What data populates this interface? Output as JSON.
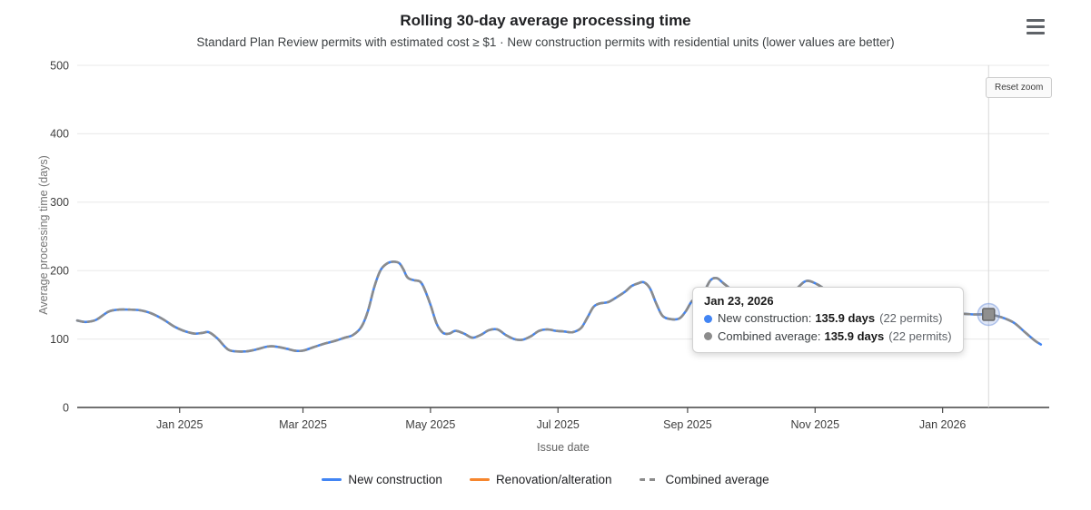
{
  "header": {
    "title": "Rolling 30-day average processing time",
    "subtitle": "Standard Plan Review permits with estimated cost ≥ $1 · New construction permits with residential units (lower values are better)"
  },
  "controls": {
    "reset_zoom_label": "Reset zoom"
  },
  "tooltip": {
    "title": "Jan 23, 2026",
    "rows": [
      {
        "label": "New construction:",
        "value": "135.9 days",
        "extra": "(22 permits)",
        "dot_color": "#4285f4"
      },
      {
        "label": "Combined average:",
        "value": "135.9 days",
        "extra": "(22 permits)",
        "dot_color": "#8c8c8c"
      }
    ]
  },
  "legend": [
    {
      "label": "New construction",
      "color": "#4285f4",
      "style": "solid"
    },
    {
      "label": "Renovation/alteration",
      "color": "#f6862e",
      "style": "solid"
    },
    {
      "label": "Combined average",
      "color": "#8c8c8c",
      "style": "dashed"
    }
  ],
  "colors": {
    "accent_blue": "#4285f4",
    "orange": "#f6862e",
    "gray_series": "#8c8c8c",
    "grid": "#e8e8e8",
    "axis": "#424242",
    "crosshair": "#d8d8d8"
  },
  "chart_data": {
    "type": "line",
    "title": "Rolling 30-day average processing time",
    "subtitle": "Standard Plan Review permits with estimated cost ≥ $1 · New construction permits with residential units (lower values are better)",
    "xlabel": "Issue date",
    "ylabel": "Average processing time (days)",
    "ylim": [
      0,
      500
    ],
    "y_ticks": [
      0,
      100,
      200,
      300,
      400,
      500
    ],
    "x_range": [
      "2024-11-13",
      "2026-02-21"
    ],
    "x_ticks": [
      {
        "label": "Jan 2025",
        "date": "2025-01-01"
      },
      {
        "label": "Mar 2025",
        "date": "2025-03-01"
      },
      {
        "label": "May 2025",
        "date": "2025-05-01"
      },
      {
        "label": "Jul 2025",
        "date": "2025-07-01"
      },
      {
        "label": "Sep 2025",
        "date": "2025-09-01"
      },
      {
        "label": "Nov 2025",
        "date": "2025-11-01"
      },
      {
        "label": "Jan 2026",
        "date": "2026-01-01"
      }
    ],
    "grid": true,
    "legend_position": "bottom",
    "hover": {
      "date": "2026-01-23",
      "new_construction": 135.9,
      "combined_average": 135.9,
      "permits": 22,
      "crosshair": true
    },
    "series": [
      {
        "name": "New construction",
        "color": "#4285f4",
        "style": "solid",
        "points": [
          [
            "2024-11-13",
            127
          ],
          [
            "2024-11-17",
            125
          ],
          [
            "2024-11-22",
            128
          ],
          [
            "2024-11-28",
            140
          ],
          [
            "2024-12-03",
            143
          ],
          [
            "2024-12-08",
            143
          ],
          [
            "2024-12-13",
            142
          ],
          [
            "2024-12-18",
            138
          ],
          [
            "2024-12-24",
            129
          ],
          [
            "2024-12-29",
            119
          ],
          [
            "2025-01-03",
            112
          ],
          [
            "2025-01-08",
            108
          ],
          [
            "2025-01-12",
            109
          ],
          [
            "2025-01-15",
            110
          ],
          [
            "2025-01-19",
            101
          ],
          [
            "2025-01-24",
            85
          ],
          [
            "2025-01-28",
            82
          ],
          [
            "2025-02-02",
            82
          ],
          [
            "2025-02-07",
            85
          ],
          [
            "2025-02-12",
            89
          ],
          [
            "2025-02-16",
            89
          ],
          [
            "2025-02-21",
            86
          ],
          [
            "2025-02-25",
            83
          ],
          [
            "2025-03-01",
            83
          ],
          [
            "2025-03-06",
            88
          ],
          [
            "2025-03-11",
            93
          ],
          [
            "2025-03-16",
            97
          ],
          [
            "2025-03-21",
            102
          ],
          [
            "2025-03-25",
            106
          ],
          [
            "2025-03-29",
            118
          ],
          [
            "2025-04-01",
            140
          ],
          [
            "2025-04-04",
            175
          ],
          [
            "2025-04-07",
            200
          ],
          [
            "2025-04-10",
            210
          ],
          [
            "2025-04-13",
            213
          ],
          [
            "2025-04-16",
            211
          ],
          [
            "2025-04-18",
            202
          ],
          [
            "2025-04-20",
            190
          ],
          [
            "2025-04-23",
            186
          ],
          [
            "2025-04-26",
            184
          ],
          [
            "2025-04-28",
            174
          ],
          [
            "2025-05-01",
            150
          ],
          [
            "2025-05-04",
            122
          ],
          [
            "2025-05-07",
            109
          ],
          [
            "2025-05-10",
            108
          ],
          [
            "2025-05-13",
            112
          ],
          [
            "2025-05-17",
            108
          ],
          [
            "2025-05-21",
            102
          ],
          [
            "2025-05-25",
            106
          ],
          [
            "2025-05-29",
            113
          ],
          [
            "2025-06-02",
            114
          ],
          [
            "2025-06-06",
            106
          ],
          [
            "2025-06-10",
            100
          ],
          [
            "2025-06-14",
            99
          ],
          [
            "2025-06-18",
            104
          ],
          [
            "2025-06-22",
            112
          ],
          [
            "2025-06-26",
            114
          ],
          [
            "2025-06-30",
            112
          ],
          [
            "2025-07-04",
            111
          ],
          [
            "2025-07-08",
            110
          ],
          [
            "2025-07-12",
            116
          ],
          [
            "2025-07-15",
            131
          ],
          [
            "2025-07-18",
            147
          ],
          [
            "2025-07-21",
            152
          ],
          [
            "2025-07-25",
            154
          ],
          [
            "2025-07-29",
            161
          ],
          [
            "2025-08-02",
            169
          ],
          [
            "2025-08-05",
            177
          ],
          [
            "2025-08-08",
            181
          ],
          [
            "2025-08-11",
            183
          ],
          [
            "2025-08-14",
            174
          ],
          [
            "2025-08-17",
            152
          ],
          [
            "2025-08-20",
            134
          ],
          [
            "2025-08-24",
            129
          ],
          [
            "2025-08-28",
            130
          ],
          [
            "2025-08-31",
            140
          ],
          [
            "2025-09-03",
            155
          ],
          [
            "2025-09-06",
            161
          ],
          [
            "2025-09-09",
            170
          ],
          [
            "2025-09-12",
            186
          ],
          [
            "2025-09-15",
            189
          ],
          [
            "2025-09-18",
            182
          ],
          [
            "2025-09-23",
            170
          ],
          [
            "2025-09-29",
            160
          ],
          [
            "2025-10-06",
            152
          ],
          [
            "2025-10-13",
            151
          ],
          [
            "2025-10-19",
            160
          ],
          [
            "2025-10-24",
            176
          ],
          [
            "2025-10-28",
            185
          ],
          [
            "2025-11-02",
            180
          ],
          [
            "2025-11-08",
            168
          ],
          [
            "2025-11-15",
            157
          ],
          [
            "2025-11-22",
            149
          ],
          [
            "2025-11-29",
            143
          ],
          [
            "2025-12-06",
            140
          ],
          [
            "2025-12-13",
            141
          ],
          [
            "2025-12-20",
            140
          ],
          [
            "2025-12-27",
            138
          ],
          [
            "2026-01-03",
            137
          ],
          [
            "2026-01-10",
            137
          ],
          [
            "2026-01-16",
            136
          ],
          [
            "2026-01-23",
            135.9
          ],
          [
            "2026-01-29",
            132
          ],
          [
            "2026-02-04",
            124
          ],
          [
            "2026-02-09",
            111
          ],
          [
            "2026-02-14",
            98
          ],
          [
            "2026-02-17",
            92
          ]
        ]
      },
      {
        "name": "Renovation/alteration",
        "color": "#f6862e",
        "style": "solid",
        "points": []
      },
      {
        "name": "Combined average",
        "color": "#8c8c8c",
        "style": "dashed",
        "points_same_as_series": "New construction"
      }
    ]
  }
}
